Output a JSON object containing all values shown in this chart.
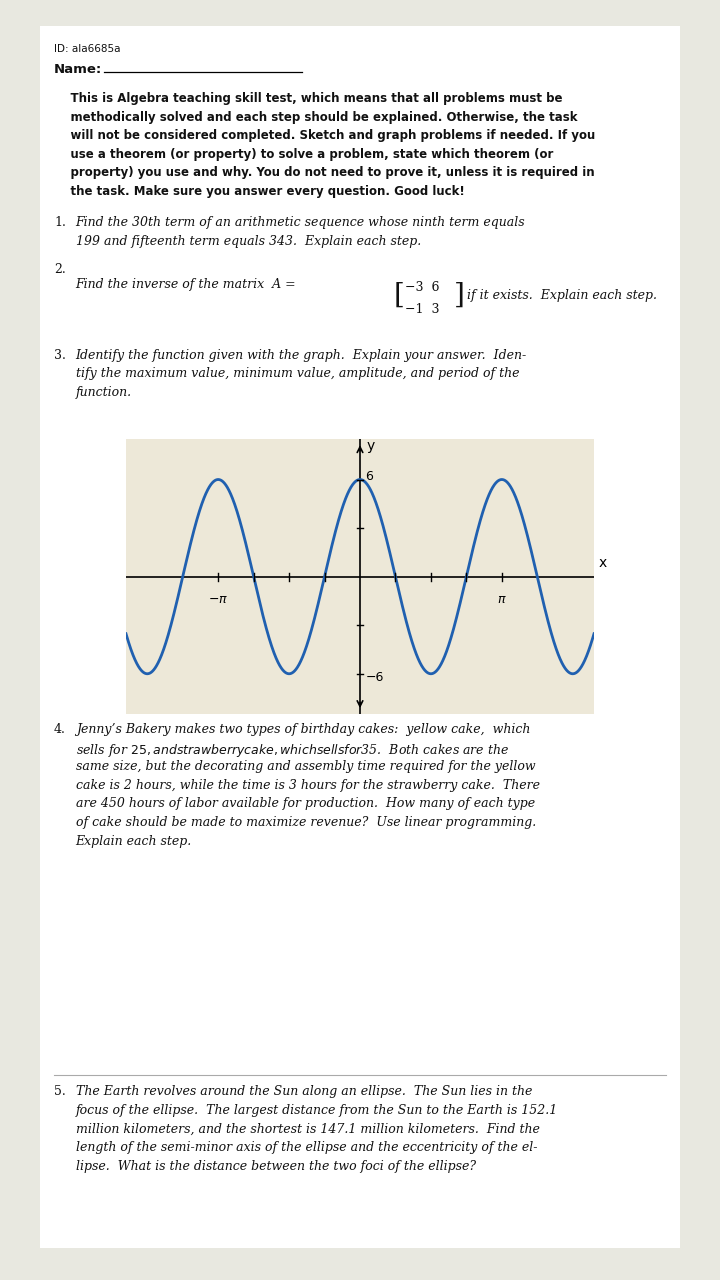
{
  "id_text": "ID: ala6685a",
  "name_label": "Name:",
  "intro_line1": "    This is Algebra teaching skill test, which means that all problems must be",
  "intro_line2": "    methodically solved and each step should be explained. Otherwise, the task",
  "intro_line3": "    will not be considered completed. Sketch and graph problems if needed. If you",
  "intro_line4": "    use a theorem (or property) to solve a problem, state which theorem (or",
  "intro_line5": "    property) you use and why. You do not need to prove it, unless it is required in",
  "intro_line6": "    the task. Make sure you answer every question. Good luck!",
  "q1_num": "1.",
  "q1_line1": "Find the 30th term of an arithmetic sequence whose ninth term equals",
  "q1_line2": "199 and fifteenth term equals 343.  Explain each step.",
  "q2_num": "2.",
  "q2_text": "Find the inverse of the matrix  A =",
  "q2_suffix": " if it exists.  Explain each step.",
  "q3_num": "3.",
  "q3_line1": "Identify the function given with the graph.  Explain your answer.  Iden-",
  "q3_line2": "tify the maximum value, minimum value, amplitude, and period of the",
  "q3_line3": "function.",
  "q4_num": "4.",
  "q4_line1": "Jenny’s Bakery makes two types of birthday cakes:  yellow cake,  which",
  "q4_line2": "sells for $25, and strawberry cake, which sells for $35.  Both cakes are the",
  "q4_line3": "same size, but the decorating and assembly time required for the yellow",
  "q4_line4": "cake is 2 hours, while the time is 3 hours for the strawberry cake.  There",
  "q4_line5": "are 450 hours of labor available for production.  How many of each type",
  "q4_line6": "of cake should be made to maximize revenue?  Use linear programming.",
  "q4_line7": "Explain each step.",
  "q5_num": "5.",
  "q5_line1": "The Earth revolves around the Sun along an ellipse.  The Sun lies in the",
  "q5_line2": "focus of the ellipse.  The largest distance from the Sun to the Earth is 152.1",
  "q5_line3": "million kilometers, and the shortest is 147.1 million kilometers.  Find the",
  "q5_line4": "length of the semi-minor axis of the ellipse and the eccentricity of the el-",
  "q5_line5": "lipse.  What is the distance between the two foci of the ellipse?",
  "bg_color": "#e8e8e0",
  "paper_color": "#ffffff",
  "text_color": "#111111",
  "graph_bg": "#ede8d8",
  "graph_line_color": "#2060b0",
  "amplitude": 6,
  "period_factor": 2
}
